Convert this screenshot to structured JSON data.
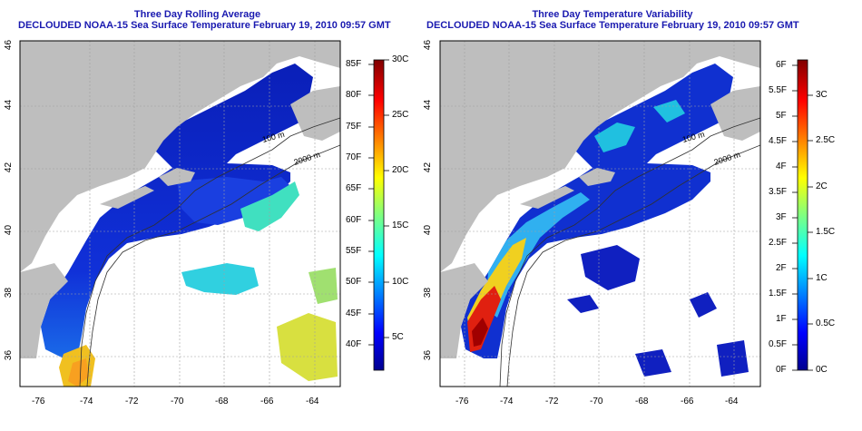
{
  "panels": [
    {
      "title_line1": "Three Day Rolling Average",
      "title_line2": "DECLOUDED NOAA-15 Sea Surface Temperature February 19, 2010 09:57 GMT",
      "colorbar_left_labels": [
        "40F",
        "45F",
        "50F",
        "55F",
        "60F",
        "65F",
        "70F",
        "75F",
        "80F",
        "85F"
      ],
      "colorbar_right_labels": [
        "5C",
        "10C",
        "15C",
        "20C",
        "25C",
        "30C"
      ]
    },
    {
      "title_line1": "Three Day Temperature Variability",
      "title_line2": "DECLOUDED NOAA-15 Sea Surface Temperature February 19, 2010 09:57 GMT",
      "colorbar_left_labels": [
        "0F",
        "0.5F",
        "1F",
        "1.5F",
        "2F",
        "2.5F",
        "3F",
        "3.5F",
        "4F",
        "4.5F",
        "5F",
        "5.5F",
        "6F"
      ],
      "colorbar_right_labels": [
        "0C",
        "0.5C",
        "1C",
        "1.5C",
        "2C",
        "2.5C",
        "3C"
      ]
    }
  ],
  "map": {
    "x_ticks": [
      "-76",
      "-74",
      "-72",
      "-70",
      "-68",
      "-66",
      "-64"
    ],
    "y_ticks": [
      "36",
      "38",
      "40",
      "42",
      "44",
      "46"
    ],
    "contour_labels": [
      "100 m",
      "2000 m"
    ]
  },
  "colors": {
    "title": "#1a1ab0",
    "land": "#bebebe",
    "ocean_nodata": "#ffffff",
    "jet_low": "#00008f",
    "jet_high": "#800000"
  }
}
